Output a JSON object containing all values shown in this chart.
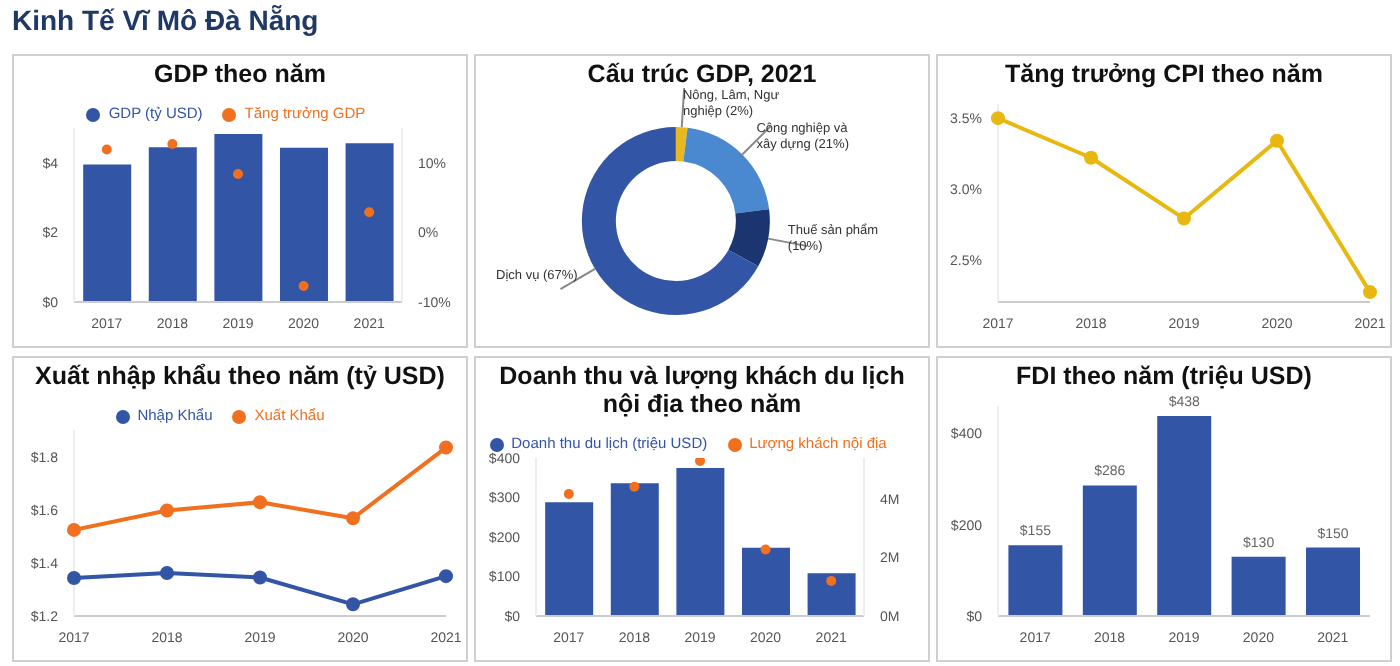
{
  "chart_data": [
    {
      "type": "other",
      "title": "Kinh Tế Vĩ Mô Đà Nẵng"
    },
    {
      "type": "bar",
      "title": "GDP theo năm",
      "categories": [
        "2017",
        "2018",
        "2019",
        "2020",
        "2021"
      ],
      "legend": "top",
      "series": [
        {
          "name": "GDP (tỷ USD)",
          "color": "#3355a5",
          "values": [
            3.95,
            4.45,
            4.83,
            4.43,
            4.56
          ]
        },
        {
          "type": "scatter",
          "name": "Tăng trưởng GDP",
          "color": "#f07020",
          "axis": "y2",
          "values": [
            11.9,
            12.7,
            8.4,
            -7.7,
            2.9
          ]
        }
      ],
      "ylim": [
        0,
        5
      ],
      "yticks": [
        {
          "value": 0,
          "label": "$0"
        },
        {
          "value": 2,
          "label": "$2"
        },
        {
          "value": 4,
          "label": "$4"
        }
      ],
      "y2lim": [
        -10,
        15
      ],
      "y2ticks": [
        {
          "value": -10,
          "label": "-10%"
        },
        {
          "value": 0,
          "label": "0%"
        },
        {
          "value": 10,
          "label": "10%"
        }
      ],
      "marker": "circle"
    },
    {
      "type": "donut",
      "title": "Cấu trúc GDP, 2021",
      "categories": [
        "Nông, Lâm, Ngư nghiệp",
        "Công nghiệp và xây dựng",
        "Thuế sản phẩm",
        "Dịch vụ"
      ],
      "values": [
        2,
        21,
        10,
        67
      ],
      "colors": [
        "#e8b820",
        "#4a88d0",
        "#1a3570",
        "#3355a5"
      ],
      "value_labels": [
        "(2%)",
        "(21%)",
        "(10%)",
        "(67%)"
      ]
    },
    {
      "type": "line",
      "title": "Tăng trưởng CPI theo năm",
      "categories": [
        "2017",
        "2018",
        "2019",
        "2020",
        "2021"
      ],
      "color": "#e8b810",
      "values": [
        3.5,
        3.22,
        2.79,
        3.34,
        2.27
      ],
      "ylim": [
        2.2,
        3.6
      ],
      "yticks": [
        {
          "value": 2.5,
          "label": "2.5%"
        },
        {
          "value": 3.0,
          "label": "3.0%"
        },
        {
          "value": 3.5,
          "label": "3.5%"
        }
      ],
      "marker": "circle"
    },
    {
      "type": "line",
      "title": "Xuất nhập khẩu theo năm (tỷ USD)",
      "categories": [
        "2017",
        "2018",
        "2019",
        "2020",
        "2021"
      ],
      "legend": "top",
      "series": [
        {
          "name": "Xuất Khẩu",
          "color": "#f07020",
          "values": [
            1.524,
            1.597,
            1.628,
            1.568,
            1.834
          ]
        },
        {
          "name": "Nhập Khẩu",
          "color": "#3355a5",
          "values": [
            1.343,
            1.362,
            1.345,
            1.244,
            1.35
          ]
        }
      ],
      "ylim": [
        1.2,
        1.9
      ],
      "yticks": [
        {
          "value": 1.2,
          "label": "$1.2"
        },
        {
          "value": 1.4,
          "label": "$1.4"
        },
        {
          "value": 1.6,
          "label": "$1.6"
        },
        {
          "value": 1.8,
          "label": "$1.8"
        }
      ],
      "marker": "circle"
    },
    {
      "type": "bar",
      "title": "Doanh thu và lượng khách du lịch nội địa theo năm",
      "categories": [
        "2017",
        "2018",
        "2019",
        "2020",
        "2021"
      ],
      "legend": "top",
      "series": [
        {
          "name": "Doanh thu du lịch (triệu USD)",
          "color": "#3355a5",
          "values": [
            288,
            336,
            375,
            173,
            108
          ]
        },
        {
          "type": "scatter",
          "name": "Lượng khách nội địa",
          "color": "#f07020",
          "axis": "y2",
          "values": [
            4.17,
            4.42,
            5.3,
            2.27,
            1.2
          ]
        }
      ],
      "ylim": [
        0,
        400
      ],
      "yticks": [
        {
          "value": 0,
          "label": "$0"
        },
        {
          "value": 100,
          "label": "$100"
        },
        {
          "value": 200,
          "label": "$200"
        },
        {
          "value": 300,
          "label": "$300"
        },
        {
          "value": 400,
          "label": "$400"
        }
      ],
      "y2lim": [
        0,
        5.4
      ],
      "y2ticks": [
        {
          "value": 0,
          "label": "0M"
        },
        {
          "value": 2,
          "label": "2M"
        },
        {
          "value": 4,
          "label": "4M"
        }
      ],
      "marker": "circle"
    },
    {
      "type": "bar",
      "title": "FDI theo năm (triệu USD)",
      "categories": [
        "2017",
        "2018",
        "2019",
        "2020",
        "2021"
      ],
      "color": "#3355a5",
      "values": [
        155,
        286,
        438,
        130,
        150
      ],
      "value_labels": [
        "$155",
        "$286",
        "$438",
        "$130",
        "$150"
      ],
      "ylim": [
        0,
        460
      ],
      "yticks": [
        {
          "value": 0,
          "label": "$0"
        },
        {
          "value": 200,
          "label": "$200"
        },
        {
          "value": 400,
          "label": "$400"
        }
      ]
    }
  ]
}
